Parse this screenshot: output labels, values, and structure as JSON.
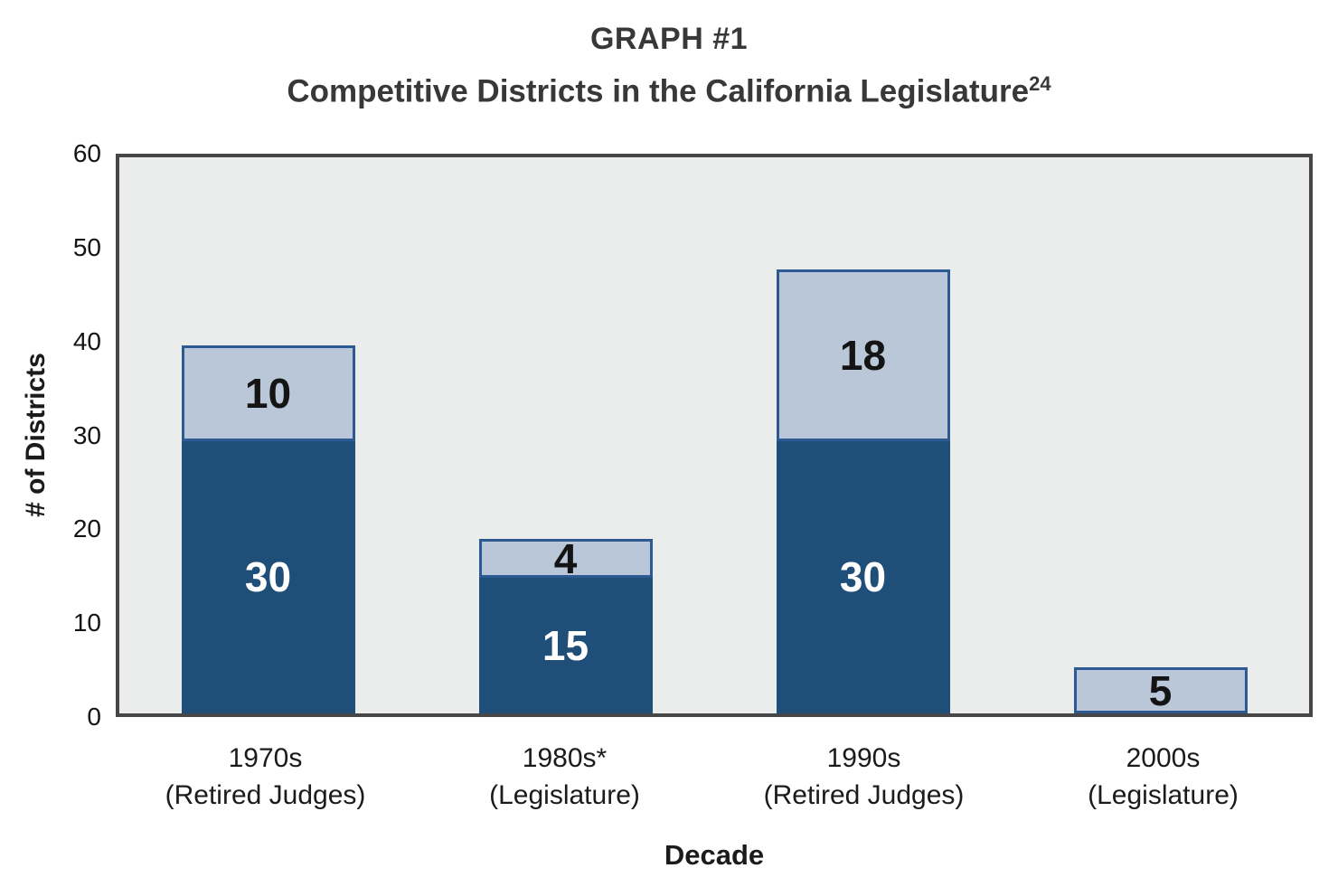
{
  "chart_data": {
    "type": "bar",
    "stacked": true,
    "title": "GRAPH #1",
    "subtitle": "Competitive Districts in the California Legislature",
    "subtitle_superscript": "24",
    "xlabel": "Decade",
    "ylabel": "# of Districts",
    "ylim": [
      0,
      60
    ],
    "yticks": [
      0,
      10,
      20,
      30,
      40,
      50,
      60
    ],
    "grid": false,
    "legend_position": "none",
    "plot_background": "#EBECEC",
    "plot_border_color": "#474747",
    "categories": [
      {
        "line1": "1970s",
        "line2": "(Retired Judges)"
      },
      {
        "line1": "1980s*",
        "line2": "(Legislature)"
      },
      {
        "line1": "1990s",
        "line2": "(Retired Judges)"
      },
      {
        "line1": "2000s",
        "line2": "(Legislature)"
      }
    ],
    "series": [
      {
        "name": "dark-blue-bottom-segment",
        "color": "#1F4E79",
        "text_color": "#FFFFFF",
        "values": [
          30,
          15,
          30,
          0
        ],
        "plotted": [
          29,
          14.4,
          29,
          0
        ]
      },
      {
        "name": "light-blue-top-segment",
        "color": "#B9C7D8",
        "border_color": "#2E5A94",
        "text_color": "#141414",
        "values": [
          10,
          4,
          18,
          5
        ],
        "plotted": [
          10.2,
          4.2,
          18.3,
          4.9
        ]
      }
    ]
  }
}
